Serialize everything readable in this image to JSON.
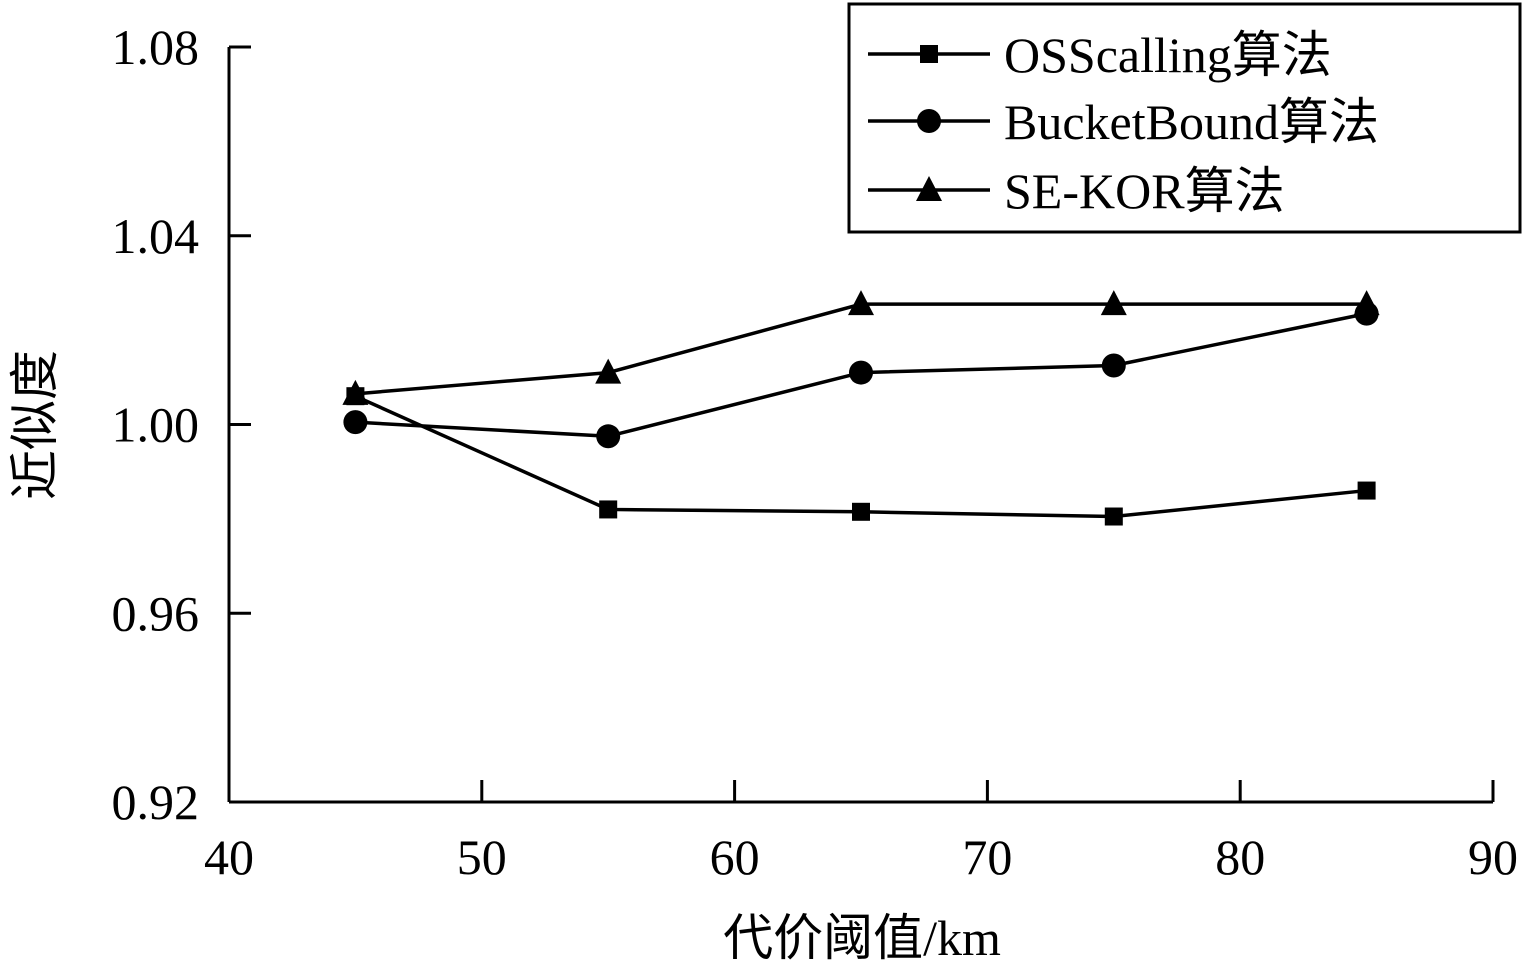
{
  "chart_data": {
    "type": "line",
    "xlabel": "代价阈值/km",
    "ylabel": "近似度",
    "xlim": [
      40,
      90
    ],
    "ylim": [
      0.92,
      1.08
    ],
    "xticks": [
      40,
      50,
      60,
      70,
      80,
      90
    ],
    "xtick_labels": [
      "40",
      "50",
      "60",
      "70",
      "80",
      "90"
    ],
    "yticks": [
      0.92,
      0.96,
      1.0,
      1.04,
      1.08
    ],
    "ytick_labels": [
      "0.92",
      "0.96",
      "1.00",
      "1.04",
      "1.08"
    ],
    "grid": false,
    "legend_position": "top-right",
    "x": [
      45,
      55,
      65,
      75,
      85
    ],
    "series": [
      {
        "name": "OSScalling算法",
        "marker": "square",
        "color": "#000000",
        "values": [
          1.006,
          0.982,
          0.9815,
          0.9805,
          0.986
        ]
      },
      {
        "name": "BucketBound算法",
        "marker": "circle",
        "color": "#000000",
        "values": [
          1.0005,
          0.9975,
          1.011,
          1.0125,
          1.0235
        ]
      },
      {
        "name": "SE-KOR算法",
        "marker": "triangle",
        "color": "#000000",
        "values": [
          1.0065,
          1.011,
          1.0255,
          1.0255,
          1.0255
        ]
      }
    ]
  }
}
